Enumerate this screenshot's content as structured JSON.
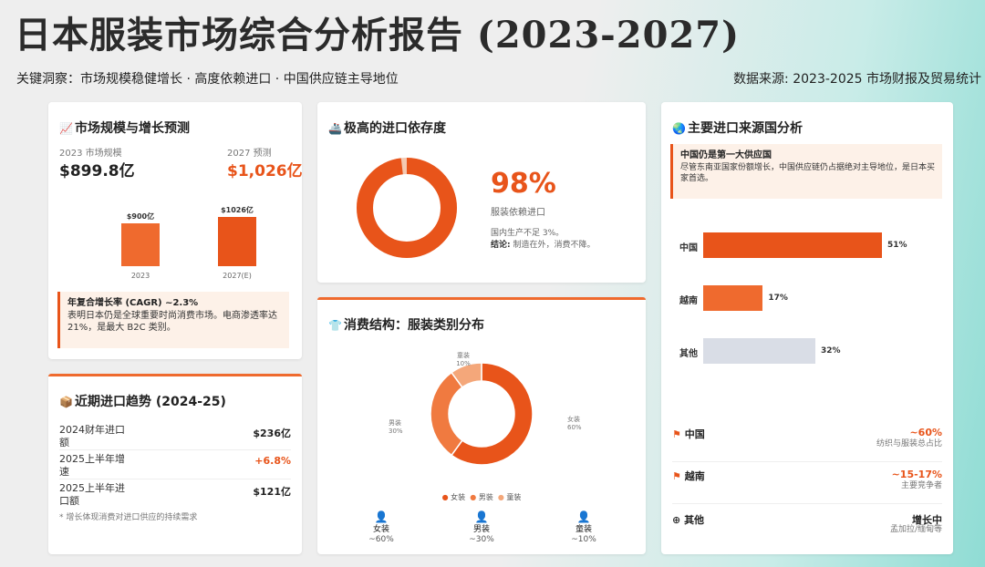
{
  "header": {
    "title": "日本服装市场综合分析报告 (2023-2027)",
    "insight": "关键洞察：市场规模稳健增长 · 高度依赖进口 · 中国供应链主导地位",
    "source": "数据来源: 2023-2025 市场财报及贸易统计"
  },
  "market": {
    "title": "市场规模与增长预测",
    "label_2023": "2023 市场规模",
    "value_2023": "$899.8亿",
    "label_2027": "2027 预测",
    "value_2027": "$1,026亿",
    "chart_data": {
      "type": "bar",
      "categories": [
        "2023",
        "2027(E)"
      ],
      "values": [
        900,
        1026
      ],
      "data_labels": [
        "$900亿",
        "$1026亿"
      ]
    },
    "cagr_title": "年复合增长率 (CAGR) ~2.3%",
    "cagr_text": "表明日本仍是全球重要时尚消费市场。电商渗透率达 21%，是最大 B2C 类别。"
  },
  "import_dep": {
    "title": "极高的进口依存度",
    "percent": "98%",
    "percent_value": 98,
    "label": "服装依赖进口",
    "note1": "国内生产不足 3%。",
    "note2_bold": "结论:",
    "note2": " 制造在外，消费不降。"
  },
  "trend": {
    "title": "近期进口趋势 (2024-25)",
    "rows": [
      {
        "k": "2024财年进口额",
        "v": "$236亿"
      },
      {
        "k": "2025上半年增速",
        "v": "+6.8%"
      },
      {
        "k": "2025上半年进口额",
        "v": "$121亿"
      }
    ],
    "footnote": "* 增长体现消费对进口供应的持续需求"
  },
  "consumption": {
    "title": "消费结构：服装类别分布",
    "chart_data": {
      "type": "pie",
      "categories": [
        "女装",
        "男装",
        "童装"
      ],
      "values": [
        60,
        30,
        10
      ],
      "labels": [
        "60%",
        "30%",
        "10%"
      ]
    },
    "legend": [
      "女装",
      "男装",
      "童装"
    ],
    "icons": [
      {
        "name": "女装",
        "value": "~60%"
      },
      {
        "name": "男装",
        "value": "~30%"
      },
      {
        "name": "童装",
        "value": "~10%"
      }
    ],
    "colors": {
      "women": "#e8541a",
      "men": "#f07a40",
      "kids": "#f4a77a"
    }
  },
  "sources": {
    "title": "主要进口来源国分析",
    "callout_title": "中国仍是第一大供应国",
    "callout_text": "尽管东南亚国家份额增长，中国供应链仍占据绝对主导地位，是日本买家首选。",
    "chart_data": {
      "type": "bar",
      "categories": [
        "中国",
        "越南",
        "其他"
      ],
      "values": [
        51,
        17,
        32
      ],
      "labels": [
        "51%",
        "17%",
        "32%"
      ]
    },
    "list": [
      {
        "name": "中国",
        "pct": "~60%",
        "sub": "纺织与服装总占比"
      },
      {
        "name": "越南",
        "pct": "~15-17%",
        "sub": "主要竞争者"
      },
      {
        "name": "其他",
        "pct": "增长中",
        "sub": "孟加拉/缅甸等"
      }
    ]
  }
}
